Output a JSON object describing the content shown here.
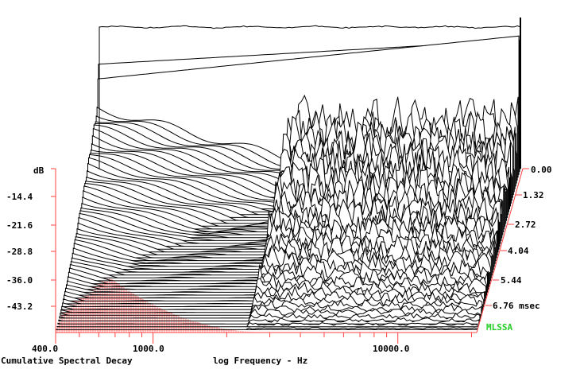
{
  "chart_data": {
    "type": "waterfall",
    "title": "Cumulative Spectral Decay",
    "xlabel": "log Frequency - Hz",
    "x_scale": "log",
    "x_tick_labels": [
      "400.0",
      "1000.0",
      "10000.0"
    ],
    "y_unit_label": "dB",
    "y_tick_labels": [
      "-14.4",
      "-21.6",
      "-28.8",
      "-36.0",
      "-43.2"
    ],
    "z_tick_labels": [
      "0.00",
      "1.32",
      "2.72",
      "4.04",
      "5.44",
      "6.76 msec"
    ],
    "z_unit": "msec",
    "ylim": [
      -50.4,
      0
    ],
    "zlim": [
      0,
      7.5
    ],
    "brand": "MLSSA",
    "brand_color": "#22cc22",
    "floor_hatch_color": "#ff4040",
    "trace_color": "#000000"
  }
}
